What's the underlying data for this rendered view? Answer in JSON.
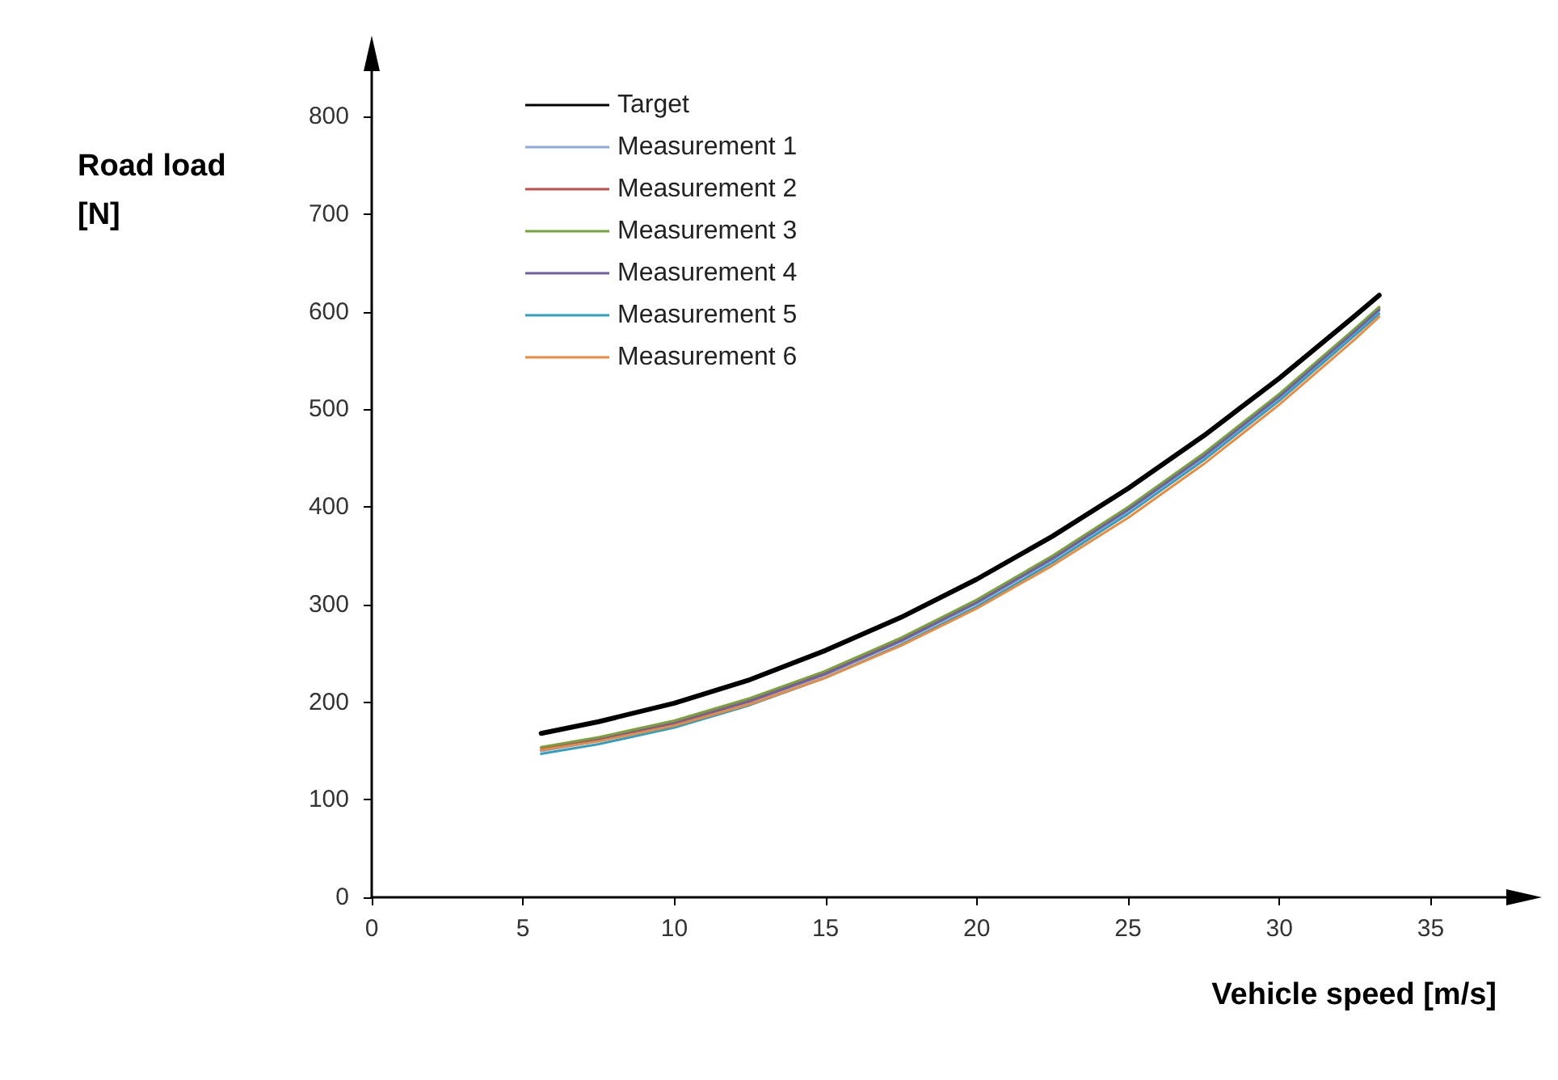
{
  "chart_data": {
    "type": "line",
    "xlabel": "Vehicle speed [m/s]",
    "ylabel": "Road load\n[N]",
    "x": [
      5.6,
      7.5,
      10,
      12.5,
      15,
      17.5,
      20,
      22.5,
      25,
      27.5,
      30,
      32.5,
      33.3
    ],
    "xlim": [
      0,
      37.5
    ],
    "xticks": [
      0,
      5,
      10,
      15,
      20,
      25,
      30,
      35
    ],
    "ylim": [
      0,
      850
    ],
    "yticks": [
      0,
      100,
      200,
      300,
      400,
      500,
      600,
      700,
      800
    ],
    "grid": false,
    "legend": "top left",
    "marker": "none",
    "line_style": "solid",
    "series": [
      {
        "name": "Target",
        "color": "#000000",
        "values": [
          168,
          180,
          199,
          223,
          253,
          287,
          326,
          370,
          419,
          473,
          532,
          596,
          617
        ]
      },
      {
        "name": "Measurement 1",
        "color": "#8faadc",
        "values": [
          150,
          160,
          177,
          200,
          228,
          262,
          301,
          346,
          396,
          451,
          512,
          579,
          601
        ]
      },
      {
        "name": "Measurement 2",
        "color": "#c0504d",
        "values": [
          153,
          163,
          180,
          203,
          231,
          265,
          304,
          349,
          399,
          454,
          515,
          582,
          604
        ]
      },
      {
        "name": "Measurement 3",
        "color": "#77a33c",
        "values": [
          154,
          164,
          181,
          204,
          232,
          266,
          305,
          350,
          400,
          455,
          516,
          583,
          605
        ]
      },
      {
        "name": "Measurement 4",
        "color": "#7060a0",
        "values": [
          151,
          161,
          178,
          201,
          229,
          263,
          302,
          347,
          397,
          452,
          513,
          580,
          602
        ]
      },
      {
        "name": "Measurement 5",
        "color": "#31a0c0",
        "values": [
          147,
          157,
          174,
          197,
          225,
          259,
          298,
          343,
          393,
          448,
          509,
          576,
          598
        ]
      },
      {
        "name": "Measurement 6",
        "color": "#ed8a3c",
        "values": [
          151,
          160,
          176,
          198,
          225,
          258,
          296,
          340,
          389,
          444,
          505,
          572,
          595
        ]
      }
    ]
  }
}
